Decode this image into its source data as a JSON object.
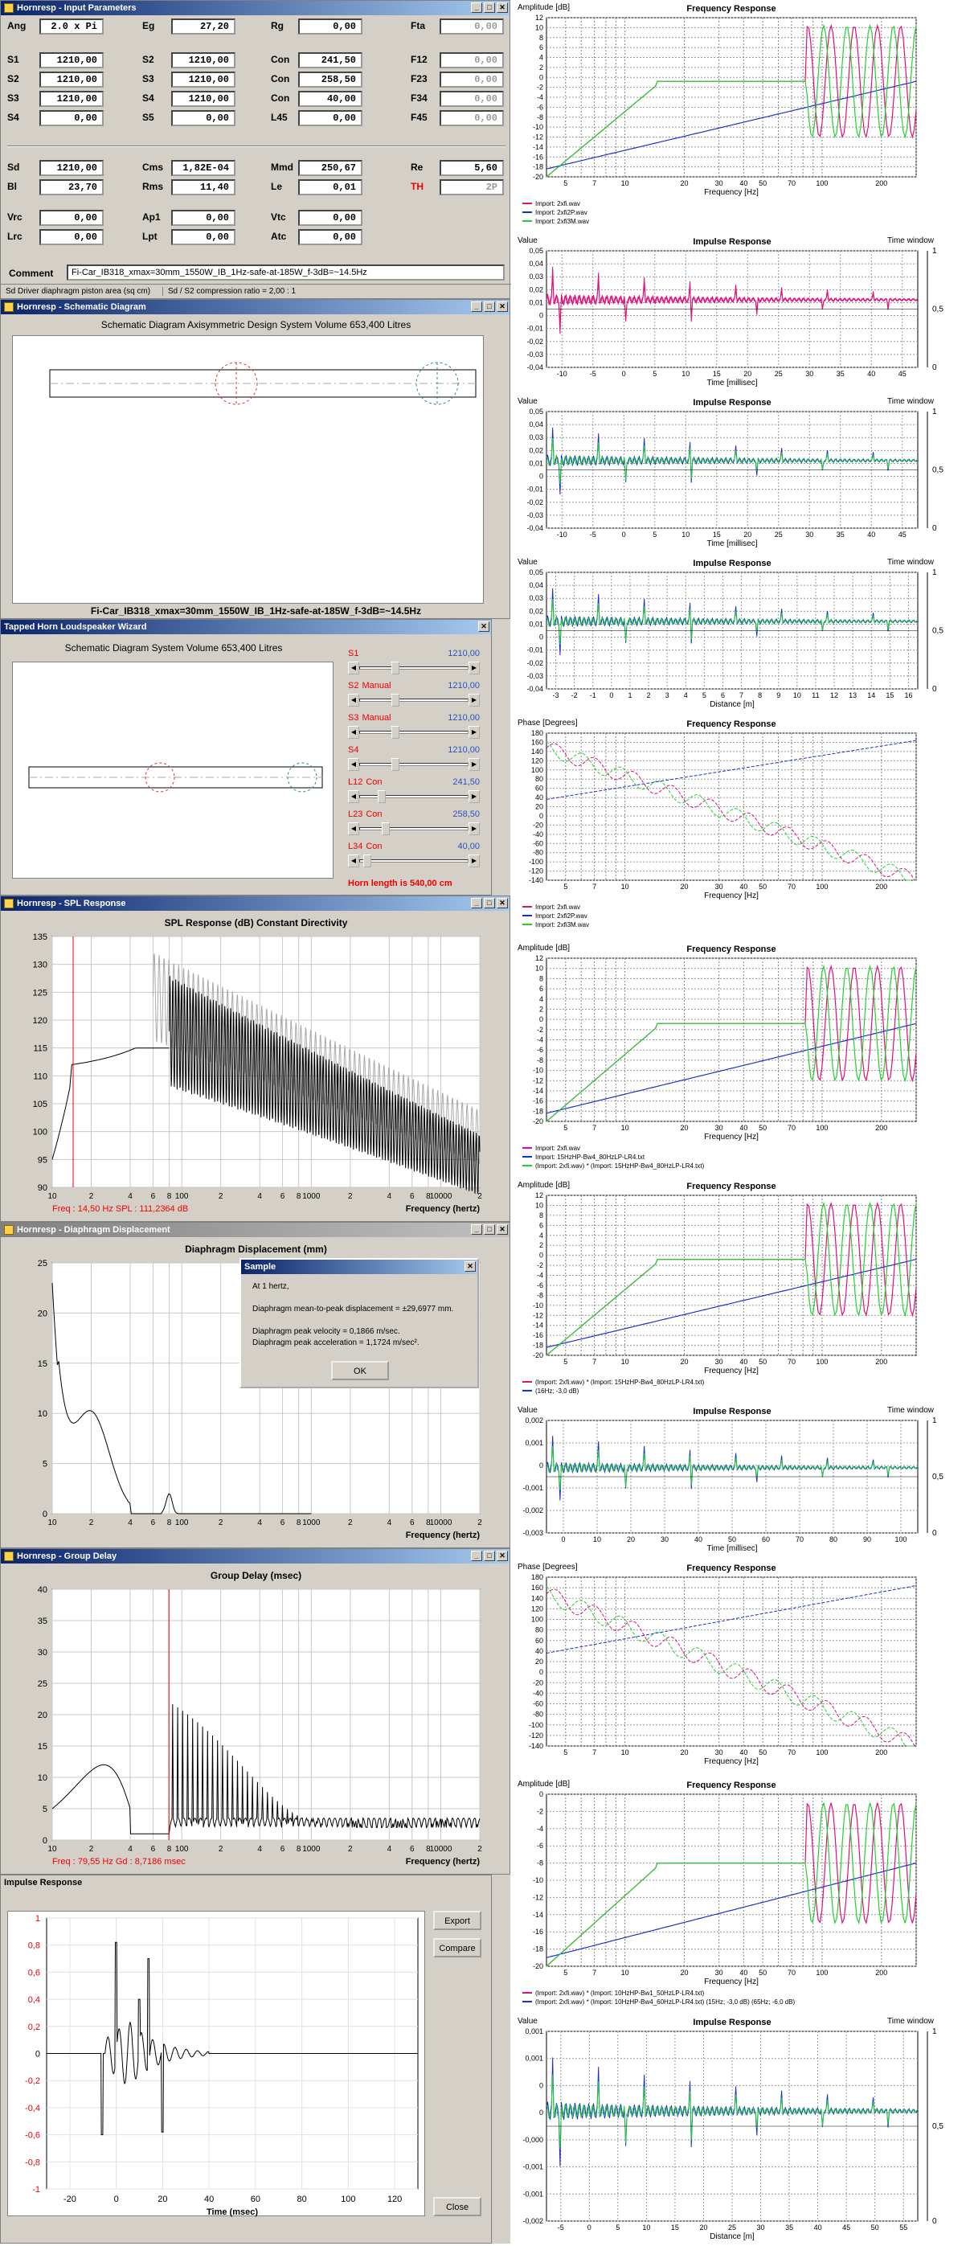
{
  "input_params": {
    "title": "Hornresp - Input Parameters",
    "rows": [
      [
        {
          "l": "Ang",
          "v": "2.0 x Pi"
        },
        {
          "l": "Eg",
          "v": "27,20"
        },
        {
          "l": "Rg",
          "v": "0,00"
        },
        {
          "l": "Fta",
          "v": "0,00",
          "dis": true
        }
      ],
      [
        {
          "l": "S1",
          "v": "1210,00"
        },
        {
          "l": "S2",
          "v": "1210,00"
        },
        {
          "l": "Con",
          "v": "241,50"
        },
        {
          "l": "F12",
          "v": "0,00",
          "dis": true
        }
      ],
      [
        {
          "l": "S2",
          "v": "1210,00"
        },
        {
          "l": "S3",
          "v": "1210,00"
        },
        {
          "l": "Con",
          "v": "258,50"
        },
        {
          "l": "F23",
          "v": "0,00",
          "dis": true
        }
      ],
      [
        {
          "l": "S3",
          "v": "1210,00"
        },
        {
          "l": "S4",
          "v": "1210,00"
        },
        {
          "l": "Con",
          "v": "40,00"
        },
        {
          "l": "F34",
          "v": "0,00",
          "dis": true
        }
      ],
      [
        {
          "l": "S4",
          "v": "0,00"
        },
        {
          "l": "S5",
          "v": "0,00"
        },
        {
          "l": "L45",
          "v": "0,00"
        },
        {
          "l": "F45",
          "v": "0,00",
          "dis": true
        }
      ]
    ],
    "rows2": [
      [
        {
          "l": "Sd",
          "v": "1210,00"
        },
        {
          "l": "Cms",
          "v": "1,82E-04"
        },
        {
          "l": "Mmd",
          "v": "250,67"
        },
        {
          "l": "Re",
          "v": "5,60"
        }
      ],
      [
        {
          "l": "Bl",
          "v": "23,70"
        },
        {
          "l": "Rms",
          "v": "11,40"
        },
        {
          "l": "Le",
          "v": "0,01"
        },
        {
          "l": "TH",
          "v": "2P",
          "dis": true
        }
      ]
    ],
    "rows3": [
      [
        {
          "l": "Vrc",
          "v": "0,00"
        },
        {
          "l": "Ap1",
          "v": "0,00"
        },
        {
          "l": "Vtc",
          "v": "0,00"
        }
      ],
      [
        {
          "l": "Lrc",
          "v": "0,00"
        },
        {
          "l": "Lpt",
          "v": "0,00"
        },
        {
          "l": "Atc",
          "v": "0,00"
        }
      ]
    ],
    "comment_label": "Comment",
    "comment": "Fi-Car_IB318_xmax=30mm_1550W_IB_1Hz-safe-at-185W_f-3dB=~14.5Hz",
    "status_1": "Sd  Driver diaphragm piston area  (sq cm)",
    "status_2": "Sd / S2 compression ratio = 2,00 : 1"
  },
  "schematic": {
    "title": "Hornresp - Schematic Diagram",
    "header": "Schematic Diagram   Axisymmetric Design   System Volume 653,400 Litres",
    "footer": "Fi-Car_IB318_xmax=30mm_1550W_IB_1Hz-safe-at-185W_f-3dB=~14.5Hz"
  },
  "wizard": {
    "title": "Tapped Horn Loudspeaker Wizard",
    "header": "Schematic Diagram   System Volume 653,400 Litres",
    "sliders": [
      {
        "label": "S1",
        "mode": "",
        "value": "1210,00"
      },
      {
        "label": "S2",
        "mode": "Manual",
        "value": "1210,00"
      },
      {
        "label": "S3",
        "mode": "Manual",
        "value": "1210,00"
      },
      {
        "label": "S4",
        "mode": "",
        "value": "1210,00"
      },
      {
        "label": "L12",
        "mode": "Con",
        "value": "241,50"
      },
      {
        "label": "L23",
        "mode": "Con",
        "value": "258,50"
      },
      {
        "label": "L34",
        "mode": "Con",
        "value": "40,00"
      }
    ],
    "horn_length": "Horn length is 540,00 cm"
  },
  "spl": {
    "title": "Hornresp - SPL Response",
    "header": "SPL Response (dB)   Constant Directivity",
    "xlabel": "Frequency (hertz)",
    "yticks": [
      "135",
      "130",
      "125",
      "120",
      "115",
      "110",
      "105",
      "100",
      "95",
      "90"
    ],
    "xticks": [
      "10",
      "2",
      "4",
      "6",
      "8",
      "100",
      "2",
      "4",
      "6",
      "8",
      "1000",
      "2",
      "4",
      "6",
      "8",
      "10000",
      "2"
    ],
    "readout": "Freq : 14,50 Hz     SPL : 111,2364 dB"
  },
  "displacement": {
    "title": "Hornresp - Diaphragm Displacement",
    "header": "Diaphragm Displacement (mm)",
    "xlabel": "Frequency (hertz)",
    "yticks": [
      "25",
      "20",
      "15",
      "10",
      "5",
      "0"
    ],
    "xticks": [
      "10",
      "2",
      "4",
      "6",
      "8",
      "100",
      "2",
      "4",
      "6",
      "8",
      "1000",
      "2",
      "4",
      "6",
      "8",
      "10000",
      "2"
    ]
  },
  "dialog": {
    "title": "Sample",
    "line1": "At 1 hertz,",
    "line2": "Diaphragm mean-to-peak displacement = ±29,6977 mm.",
    "line3": "Diaphragm peak velocity = 0,1866 m/sec.",
    "line4": "Diaphragm peak acceleration = 1,1724 m/sec².",
    "ok": "OK"
  },
  "group_delay": {
    "title": "Hornresp - Group Delay",
    "header": "Group Delay (msec)",
    "xlabel": "Frequency (hertz)",
    "yticks": [
      "40",
      "35",
      "30",
      "25",
      "20",
      "15",
      "10",
      "5",
      "0"
    ],
    "xticks": [
      "10",
      "2",
      "4",
      "6",
      "8",
      "100",
      "2",
      "4",
      "6",
      "8",
      "1000",
      "2",
      "4",
      "6",
      "8",
      "10000",
      "2"
    ],
    "readout": "Freq : 79,55 Hz     Gd : 8,7186 msec"
  },
  "impulse_win": {
    "title": "Impulse Response",
    "yticks": [
      "1",
      "0,8",
      "0,6",
      "0,4",
      "0,2",
      "0",
      "-0,2",
      "-0,4",
      "-0,6",
      "-0,8",
      "-1"
    ],
    "xticks": [
      "-20",
      "0",
      "20",
      "40",
      "60",
      "80",
      "100",
      "120"
    ],
    "xlabel": "Time (msec)",
    "export": "Export",
    "compare": "Compare",
    "close": "Close"
  },
  "right": {
    "fr1": {
      "ylabel": "Amplitude [dB]",
      "title": "Frequency Response",
      "xlabel": "Frequency [Hz]",
      "yticks": [
        "12",
        "10",
        "8",
        "6",
        "4",
        "2",
        "0",
        "-2",
        "-4",
        "-6",
        "-8",
        "-10",
        "-12",
        "-14",
        "-16",
        "-18",
        "-20"
      ],
      "xticks": [
        "5",
        "7",
        "10",
        "20",
        "30",
        "40",
        "50",
        "70",
        "100",
        "200"
      ],
      "legend": [
        "Import: 2xfi.wav",
        "Import: 2xfi2P.wav",
        "Import: 2xfi3M.wav"
      ]
    },
    "ir1": {
      "ylabel": "Value",
      "title": "Impulse Response",
      "right": "Time window",
      "xlabel": "Time [millisec]",
      "yticks": [
        "0,05",
        "0,04",
        "0,03",
        "0,02",
        "0,01",
        "0",
        "-0,01",
        "-0,02",
        "-0,03",
        "-0,04"
      ],
      "xticks": [
        "-10",
        "-5",
        "0",
        "5",
        "10",
        "15",
        "20",
        "25",
        "30",
        "35",
        "40",
        "45"
      ],
      "rticks": [
        "1",
        "0,5",
        "0"
      ]
    },
    "ir2": {
      "ylabel": "Value",
      "title": "Impulse Response",
      "right": "Time window",
      "xlabel": "Time [millisec]",
      "yticks": [
        "0,05",
        "0,04",
        "0,03",
        "0,02",
        "0,01",
        "0",
        "-0,01",
        "-0,02",
        "-0,03",
        "-0,04"
      ],
      "xticks": [
        "-10",
        "-5",
        "0",
        "5",
        "10",
        "15",
        "20",
        "25",
        "30",
        "35",
        "40",
        "45"
      ],
      "rticks": [
        "1",
        "0,5",
        "0"
      ]
    },
    "ir3": {
      "ylabel": "Value",
      "title": "Impulse Response",
      "right": "Time window",
      "xlabel": "Distance [m]",
      "yticks": [
        "0,05",
        "0,04",
        "0,03",
        "0,02",
        "0,01",
        "0",
        "-0,01",
        "-0,02",
        "-0,03",
        "-0,04"
      ],
      "xticks": [
        "-3",
        "-2",
        "-1",
        "0",
        "1",
        "2",
        "3",
        "4",
        "5",
        "6",
        "7",
        "8",
        "9",
        "10",
        "11",
        "12",
        "13",
        "14",
        "15",
        "16"
      ],
      "rticks": [
        "1",
        "0,5",
        "0"
      ]
    },
    "ph1": {
      "ylabel": "Phase [Degrees]",
      "title": "Frequency Response",
      "xlabel": "Frequency [Hz]",
      "yticks": [
        "180",
        "160",
        "140",
        "120",
        "100",
        "80",
        "60",
        "40",
        "20",
        "0",
        "-20",
        "-40",
        "-60",
        "-80",
        "-100",
        "-120",
        "-140"
      ],
      "xticks": [
        "5",
        "7",
        "10",
        "20",
        "30",
        "40",
        "50",
        "70",
        "100",
        "200"
      ],
      "legend": [
        "Import: 2xfi.wav",
        "Import: 2xfi2P.wav",
        "Import: 2xfi3M.wav"
      ]
    },
    "fr2": {
      "ylabel": "Amplitude [dB]",
      "title": "Frequency Response",
      "xlabel": "Frequency [Hz]",
      "yticks": [
        "12",
        "10",
        "8",
        "6",
        "4",
        "2",
        "0",
        "-2",
        "-4",
        "-6",
        "-8",
        "-10",
        "-12",
        "-14",
        "-16",
        "-18",
        "-20"
      ],
      "xticks": [
        "5",
        "7",
        "10",
        "20",
        "30",
        "40",
        "50",
        "70",
        "100",
        "200"
      ],
      "legend": [
        "Import: 2xfi.wav",
        "Import: 15HzHP-Bw4_80HzLP-LR4.txt",
        "(Import: 2xfi.wav) * (Import: 15HzHP-Bw4_80HzLP-LR4.txt)"
      ]
    },
    "fr3": {
      "ylabel": "Amplitude [dB]",
      "title": "Frequency Response",
      "xlabel": "Frequency [Hz]",
      "yticks": [
        "12",
        "10",
        "8",
        "6",
        "4",
        "2",
        "0",
        "-2",
        "-4",
        "-6",
        "-8",
        "-10",
        "-12",
        "-14",
        "-16",
        "-18",
        "-20"
      ],
      "xticks": [
        "5",
        "7",
        "10",
        "20",
        "30",
        "40",
        "50",
        "70",
        "100",
        "200"
      ],
      "legend": [
        "(Import: 2xfi.wav) * (Import: 15HzHP-Bw4_80HzLP-LR4.txt)",
        "(16Hz; -3,0 dB)"
      ]
    },
    "ir4": {
      "ylabel": "Value",
      "title": "Impulse Response",
      "right": "Time window",
      "xlabel": "Time [millisec]",
      "yticks": [
        "0,002",
        "0,001",
        "0",
        "-0,001",
        "-0,002",
        "-0,003"
      ],
      "xticks": [
        "0",
        "10",
        "20",
        "30",
        "40",
        "50",
        "60",
        "70",
        "80",
        "90",
        "100"
      ],
      "rticks": [
        "1",
        "0,5",
        "0"
      ]
    },
    "ph2": {
      "ylabel": "Phase [Degrees]",
      "title": "Frequency Response",
      "xlabel": "Frequency [Hz]",
      "yticks": [
        "180",
        "160",
        "140",
        "120",
        "100",
        "80",
        "60",
        "40",
        "20",
        "0",
        "-20",
        "-40",
        "-60",
        "-80",
        "-100",
        "-120",
        "-140"
      ],
      "xticks": [
        "5",
        "7",
        "10",
        "20",
        "30",
        "40",
        "50",
        "70",
        "100",
        "200"
      ]
    },
    "fr4": {
      "ylabel": "Amplitude [dB]",
      "title": "Frequency Response",
      "xlabel": "Frequency [Hz]",
      "yticks": [
        "0",
        "-2",
        "-4",
        "-6",
        "-8",
        "-10",
        "-12",
        "-14",
        "-16",
        "-18",
        "-20"
      ],
      "xticks": [
        "5",
        "7",
        "10",
        "20",
        "30",
        "40",
        "50",
        "70",
        "100",
        "200"
      ],
      "legend": [
        "(Import: 2xfi.wav) * (Import: 10HzHP-Bw1_50HzLP-LR4.txt)",
        "(Import: 2xfi.wav) * (Import: 10HzHP-Bw4_60HzLP-LR4.txt)   (15Hz; -3,0 dB)   (65Hz; -6,0 dB)"
      ]
    },
    "ir5": {
      "ylabel": "Value",
      "title": "Impulse Response",
      "right": "Time window",
      "xlabel": "Distance [m]",
      "yticks": [
        "0,001",
        "0,001",
        "0",
        "0",
        "-0,000",
        "-0,001",
        "-0,001",
        "-0,002"
      ],
      "xticks": [
        "-5",
        "0",
        "5",
        "10",
        "15",
        "20",
        "25",
        "30",
        "35",
        "40",
        "45",
        "50",
        "55"
      ],
      "rticks": [
        "1",
        "0,5",
        "0"
      ]
    }
  }
}
